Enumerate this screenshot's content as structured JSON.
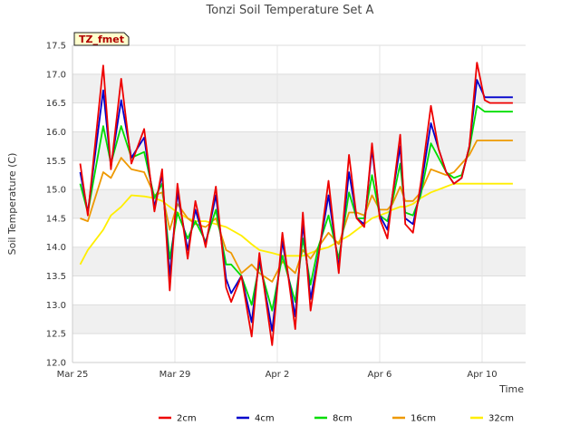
{
  "chart_data": {
    "type": "line",
    "title": "Tonzi Soil Temperature Set A",
    "xlabel": "Time",
    "ylabel": "Soil Temperature (C)",
    "ylim": [
      12.0,
      17.5
    ],
    "xlim": [
      0,
      17.7
    ],
    "y_ticks": [
      12.0,
      12.5,
      13.0,
      13.5,
      14.0,
      14.5,
      15.0,
      15.5,
      16.0,
      16.5,
      17.0,
      17.5
    ],
    "x_ticks": [
      {
        "day": 0,
        "label": "Mar 25"
      },
      {
        "day": 4,
        "label": "Mar 29"
      },
      {
        "day": 8,
        "label": "Apr 2"
      },
      {
        "day": 12,
        "label": "Apr 6"
      },
      {
        "day": 16,
        "label": "Apr 10"
      }
    ],
    "badge": "TZ_fmet",
    "legend_position": "bottom-center",
    "x_days": [
      0.3,
      0.6,
      1.2,
      1.5,
      1.9,
      2.3,
      2.8,
      3.2,
      3.5,
      3.8,
      4.1,
      4.5,
      4.8,
      5.2,
      5.6,
      6.0,
      6.2,
      6.6,
      7.0,
      7.3,
      7.8,
      8.2,
      8.7,
      9.0,
      9.3,
      9.6,
      10.0,
      10.4,
      10.8,
      11.1,
      11.4,
      11.7,
      12.0,
      12.3,
      12.5,
      12.8,
      13.0,
      13.3,
      13.6,
      14.0,
      14.3,
      14.6,
      14.9,
      15.2,
      15.5,
      15.8,
      16.1,
      16.3,
      16.6,
      16.8,
      17.0,
      17.2
    ],
    "series": [
      {
        "name": "2cm",
        "color": "#ee0000",
        "values": [
          15.45,
          14.55,
          17.15,
          15.35,
          16.92,
          15.45,
          16.05,
          14.62,
          15.35,
          13.25,
          15.1,
          13.8,
          14.8,
          14.0,
          15.05,
          13.3,
          13.05,
          13.5,
          12.45,
          13.9,
          12.3,
          14.25,
          12.58,
          14.6,
          12.9,
          13.8,
          15.15,
          13.55,
          15.6,
          14.5,
          14.35,
          15.8,
          14.5,
          14.15,
          14.9,
          15.95,
          14.4,
          14.25,
          15.1,
          16.45,
          15.7,
          15.3,
          15.1,
          15.2,
          15.75,
          17.2,
          16.55,
          16.5,
          16.5,
          16.5,
          16.5,
          16.5
        ]
      },
      {
        "name": "4cm",
        "color": "#0000cc",
        "values": [
          15.3,
          14.6,
          16.72,
          15.4,
          16.55,
          15.55,
          15.9,
          14.7,
          15.25,
          13.5,
          14.95,
          13.95,
          14.65,
          14.05,
          14.9,
          13.45,
          13.2,
          13.5,
          12.7,
          13.8,
          12.55,
          14.1,
          12.8,
          14.4,
          13.1,
          13.85,
          14.9,
          13.65,
          15.3,
          14.5,
          14.4,
          15.7,
          14.55,
          14.3,
          14.9,
          15.75,
          14.5,
          14.4,
          15.0,
          16.15,
          15.7,
          15.3,
          15.1,
          15.2,
          15.75,
          16.9,
          16.6,
          16.6,
          16.6,
          16.6,
          16.6,
          16.6
        ]
      },
      {
        "name": "8cm",
        "color": "#00dd00",
        "values": [
          15.1,
          14.6,
          16.1,
          15.45,
          16.1,
          15.55,
          15.65,
          14.85,
          15.1,
          13.8,
          14.6,
          14.15,
          14.45,
          14.1,
          14.65,
          13.7,
          13.7,
          13.5,
          13.0,
          13.7,
          12.9,
          13.85,
          13.05,
          14.15,
          13.35,
          14.0,
          14.55,
          13.8,
          14.95,
          14.5,
          14.5,
          15.25,
          14.55,
          14.45,
          14.8,
          15.45,
          14.6,
          14.55,
          14.9,
          15.8,
          15.55,
          15.3,
          15.2,
          15.25,
          15.7,
          16.45,
          16.35,
          16.35,
          16.35,
          16.35,
          16.35,
          16.35
        ]
      },
      {
        "name": "16cm",
        "color": "#ee9900",
        "values": [
          14.5,
          14.45,
          15.3,
          15.2,
          15.55,
          15.35,
          15.3,
          14.9,
          14.95,
          14.3,
          14.75,
          14.5,
          14.4,
          14.35,
          14.5,
          13.95,
          13.9,
          13.55,
          13.7,
          13.55,
          13.4,
          13.75,
          13.55,
          13.95,
          13.8,
          14.0,
          14.25,
          14.05,
          14.6,
          14.6,
          14.55,
          14.9,
          14.65,
          14.65,
          14.75,
          15.05,
          14.8,
          14.8,
          14.95,
          15.35,
          15.3,
          15.25,
          15.3,
          15.45,
          15.6,
          15.85,
          15.85,
          15.85,
          15.85,
          15.85,
          15.85,
          15.85
        ]
      },
      {
        "name": "32cm",
        "color": "#ffee00",
        "values": [
          13.7,
          13.95,
          14.3,
          14.55,
          14.7,
          14.9,
          14.88,
          14.85,
          14.8,
          14.7,
          14.6,
          14.5,
          14.45,
          14.45,
          14.4,
          14.35,
          14.3,
          14.2,
          14.05,
          13.95,
          13.9,
          13.85,
          13.85,
          13.85,
          13.9,
          13.95,
          14.0,
          14.1,
          14.2,
          14.3,
          14.4,
          14.5,
          14.55,
          14.6,
          14.65,
          14.7,
          14.7,
          14.75,
          14.85,
          14.95,
          15.0,
          15.05,
          15.1,
          15.1,
          15.1,
          15.1,
          15.1,
          15.1,
          15.1,
          15.1,
          15.1,
          15.1
        ]
      }
    ]
  }
}
